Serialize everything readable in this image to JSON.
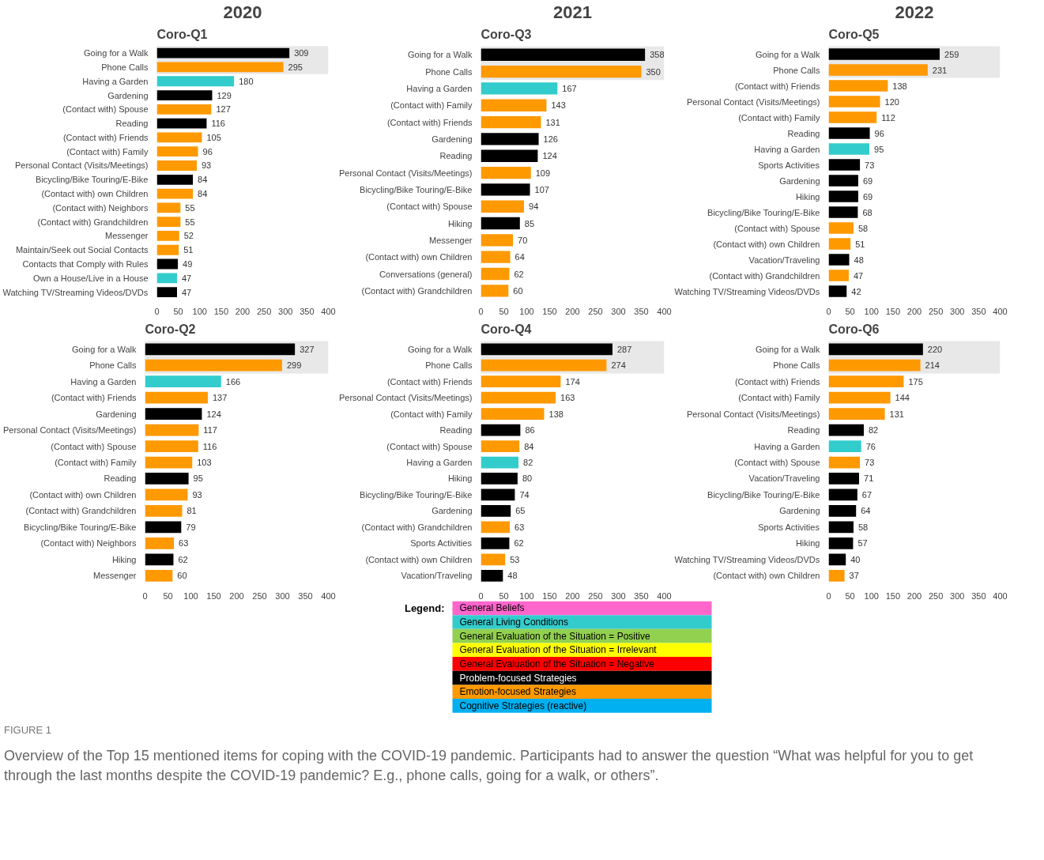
{
  "chart_data": [
    {
      "type": "bar",
      "orientation": "horizontal",
      "title": "2020",
      "subtitle": "Coro-Q1",
      "xlim": [
        0,
        400
      ],
      "xticks": [
        0,
        50,
        100,
        150,
        200,
        250,
        300,
        350,
        400
      ],
      "grid": false,
      "data_labels": true,
      "bands": [
        {
          "axis": "y",
          "from": "Going for a Walk",
          "to": "Phone Calls",
          "color": "#e8e8e8"
        }
      ],
      "categories": [
        "Going for a Walk",
        "Phone Calls",
        "Having a Garden",
        "Gardening",
        "(Contact with) Spouse",
        "Reading",
        "(Contact with) Friends",
        "(Contact with) Family",
        "Personal Contact (Visits/Meetings)",
        "Bicycling/Bike Touring/E-Bike",
        "(Contact with) own Children",
        "(Contact with) Neighbors",
        "(Contact with) Grandchildren",
        "Messenger",
        "Maintain/Seek out Social Contacts",
        "Contacts that Comply with Rules",
        "Own a House/Live in a House",
        "Watching TV/Streaming Videos/DVDs"
      ],
      "values": [
        309,
        295,
        180,
        129,
        127,
        116,
        105,
        96,
        93,
        84,
        84,
        55,
        55,
        52,
        51,
        49,
        47,
        47
      ],
      "colors": [
        "#000000",
        "#ff9900",
        "#33cccc",
        "#000000",
        "#ff9900",
        "#000000",
        "#ff9900",
        "#ff9900",
        "#ff9900",
        "#000000",
        "#ff9900",
        "#ff9900",
        "#ff9900",
        "#ff9900",
        "#ff9900",
        "#000000",
        "#33cccc",
        "#000000"
      ]
    },
    {
      "type": "bar",
      "orientation": "horizontal",
      "title": "2021",
      "subtitle": "Coro-Q3",
      "xlim": [
        0,
        400
      ],
      "xticks": [
        0,
        50,
        100,
        150,
        200,
        250,
        300,
        350,
        400
      ],
      "grid": false,
      "data_labels": true,
      "bands": [
        {
          "axis": "y",
          "from": "Going for a Walk",
          "to": "Phone Calls",
          "color": "#e8e8e8"
        }
      ],
      "categories": [
        "Going for a Walk",
        "Phone Calls",
        "Having a Garden",
        "(Contact with) Family",
        "(Contact with) Friends",
        "Gardening",
        "Reading",
        "Personal Contact (Visits/Meetings)",
        "Bicycling/Bike Touring/E-Bike",
        "(Contact with) Spouse",
        "Hiking",
        "Messenger",
        "(Contact with) own Children",
        "Conversations (general)",
        "(Contact with) Grandchildren"
      ],
      "values": [
        358,
        350,
        167,
        143,
        131,
        126,
        124,
        109,
        107,
        94,
        85,
        70,
        64,
        62,
        60
      ],
      "colors": [
        "#000000",
        "#ff9900",
        "#33cccc",
        "#ff9900",
        "#ff9900",
        "#000000",
        "#000000",
        "#ff9900",
        "#000000",
        "#ff9900",
        "#000000",
        "#ff9900",
        "#ff9900",
        "#ff9900",
        "#ff9900"
      ]
    },
    {
      "type": "bar",
      "orientation": "horizontal",
      "title": "2022",
      "subtitle": "Coro-Q5",
      "xlim": [
        0,
        400
      ],
      "xticks": [
        0,
        50,
        100,
        150,
        200,
        250,
        300,
        350,
        400
      ],
      "grid": false,
      "data_labels": true,
      "bands": [
        {
          "axis": "y",
          "from": "Going for a Walk",
          "to": "Phone Calls",
          "color": "#e8e8e8"
        }
      ],
      "categories": [
        "Going for a Walk",
        "Phone Calls",
        "(Contact with) Friends",
        "Personal Contact (Visits/Meetings)",
        "(Contact with) Family",
        "Reading",
        "Having a Garden",
        "Sports Activities",
        "Gardening",
        "Hiking",
        "Bicycling/Bike Touring/E-Bike",
        "(Contact with) Spouse",
        "(Contact with) own Children",
        "Vacation/Traveling",
        "(Contact with) Grandchildren",
        "Watching TV/Streaming Videos/DVDs"
      ],
      "values": [
        259,
        231,
        138,
        120,
        112,
        96,
        95,
        73,
        69,
        69,
        68,
        58,
        51,
        48,
        47,
        42
      ],
      "colors": [
        "#000000",
        "#ff9900",
        "#ff9900",
        "#ff9900",
        "#ff9900",
        "#000000",
        "#33cccc",
        "#000000",
        "#000000",
        "#000000",
        "#000000",
        "#ff9900",
        "#ff9900",
        "#000000",
        "#ff9900",
        "#000000"
      ]
    },
    {
      "type": "bar",
      "orientation": "horizontal",
      "title": "Coro-Q2",
      "xlim": [
        0,
        400
      ],
      "xticks": [
        0,
        50,
        100,
        150,
        200,
        250,
        300,
        350,
        400
      ],
      "grid": false,
      "data_labels": true,
      "bands": [
        {
          "axis": "y",
          "from": "Going for a Walk",
          "to": "Phone Calls",
          "color": "#e8e8e8"
        }
      ],
      "categories": [
        "Going for a Walk",
        "Phone Calls",
        "Having a Garden",
        "(Contact with) Friends",
        "Gardening",
        "Personal Contact (Visits/Meetings)",
        "(Contact with) Spouse",
        "(Contact with) Family",
        "Reading",
        "(Contact with) own Children",
        "(Contact with) Grandchildren",
        "Bicycling/Bike Touring/E-Bike",
        "(Contact with) Neighbors",
        "Hiking",
        "Messenger"
      ],
      "values": [
        327,
        299,
        166,
        137,
        124,
        117,
        116,
        103,
        95,
        93,
        81,
        79,
        63,
        62,
        60
      ],
      "colors": [
        "#000000",
        "#ff9900",
        "#33cccc",
        "#ff9900",
        "#000000",
        "#ff9900",
        "#ff9900",
        "#ff9900",
        "#000000",
        "#ff9900",
        "#ff9900",
        "#000000",
        "#ff9900",
        "#000000",
        "#ff9900"
      ]
    },
    {
      "type": "bar",
      "orientation": "horizontal",
      "title": "Coro-Q4",
      "xlim": [
        0,
        400
      ],
      "xticks": [
        0,
        50,
        100,
        150,
        200,
        250,
        300,
        350,
        400
      ],
      "grid": false,
      "data_labels": true,
      "bands": [
        {
          "axis": "y",
          "from": "Going for a Walk",
          "to": "Phone Calls",
          "color": "#e8e8e8"
        }
      ],
      "categories": [
        "Going for a Walk",
        "Phone Calls",
        "(Contact with) Friends",
        "Personal Contact (Visits/Meetings)",
        "(Contact with) Family",
        "Reading",
        "(Contact with) Spouse",
        "Having a Garden",
        "Hiking",
        "Bicycling/Bike Touring/E-Bike",
        "Gardening",
        "(Contact with) Grandchildren",
        "Sports Activities",
        "(Contact with) own Children",
        "Vacation/Traveling"
      ],
      "values": [
        287,
        274,
        174,
        163,
        138,
        86,
        84,
        82,
        80,
        74,
        65,
        63,
        62,
        53,
        48
      ],
      "colors": [
        "#000000",
        "#ff9900",
        "#ff9900",
        "#ff9900",
        "#ff9900",
        "#000000",
        "#ff9900",
        "#33cccc",
        "#000000",
        "#000000",
        "#000000",
        "#ff9900",
        "#000000",
        "#ff9900",
        "#000000"
      ]
    },
    {
      "type": "bar",
      "orientation": "horizontal",
      "title": "Coro-Q6",
      "xlim": [
        0,
        400
      ],
      "xticks": [
        0,
        50,
        100,
        150,
        200,
        250,
        300,
        350,
        400
      ],
      "grid": false,
      "data_labels": true,
      "bands": [
        {
          "axis": "y",
          "from": "Going for a Walk",
          "to": "Phone Calls",
          "color": "#e8e8e8"
        }
      ],
      "categories": [
        "Going for a Walk",
        "Phone Calls",
        "(Contact with) Friends",
        "(Contact with) Family",
        "Personal Contact (Visits/Meetings)",
        "Reading",
        "Having a Garden",
        "(Contact with) Spouse",
        "Vacation/Traveling",
        "Bicycling/Bike Touring/E-Bike",
        "Gardening",
        "Sports Activities",
        "Hiking",
        "Watching TV/Streaming Videos/DVDs",
        "(Contact with) own Children"
      ],
      "values": [
        220,
        214,
        175,
        144,
        131,
        82,
        76,
        73,
        71,
        67,
        64,
        58,
        57,
        40,
        37
      ],
      "colors": [
        "#000000",
        "#ff9900",
        "#ff9900",
        "#ff9900",
        "#ff9900",
        "#000000",
        "#33cccc",
        "#ff9900",
        "#000000",
        "#000000",
        "#000000",
        "#000000",
        "#000000",
        "#000000",
        "#ff9900"
      ]
    },
    {
      "type": "other",
      "title": "Legend:",
      "categories": [
        "General Beliefs",
        "General Living Conditions",
        "General Evaluation of the Situation = Positive",
        "General Evaluation of the Situation = Irrelevant",
        "General Evaluation of the Situation = Negative",
        "Problem-focused Strategies",
        "Emotion-focused Strategies",
        "Cognitive Strategies (reactive)"
      ],
      "colors": [
        "#ff66cc",
        "#33cccc",
        "#92d050",
        "#ffff00",
        "#ff0000",
        "#000000",
        "#ff9900",
        "#00b0f0"
      ],
      "annotations": [
        "FIGURE 1",
        "Overview of the Top 15 mentioned items for coping with the COVID-19 pandemic. Participants had to answer the question “What was helpful for you to get through the last months despite the COVID-19 pandemic? E.g., phone calls, going for a walk, or others”."
      ]
    }
  ]
}
